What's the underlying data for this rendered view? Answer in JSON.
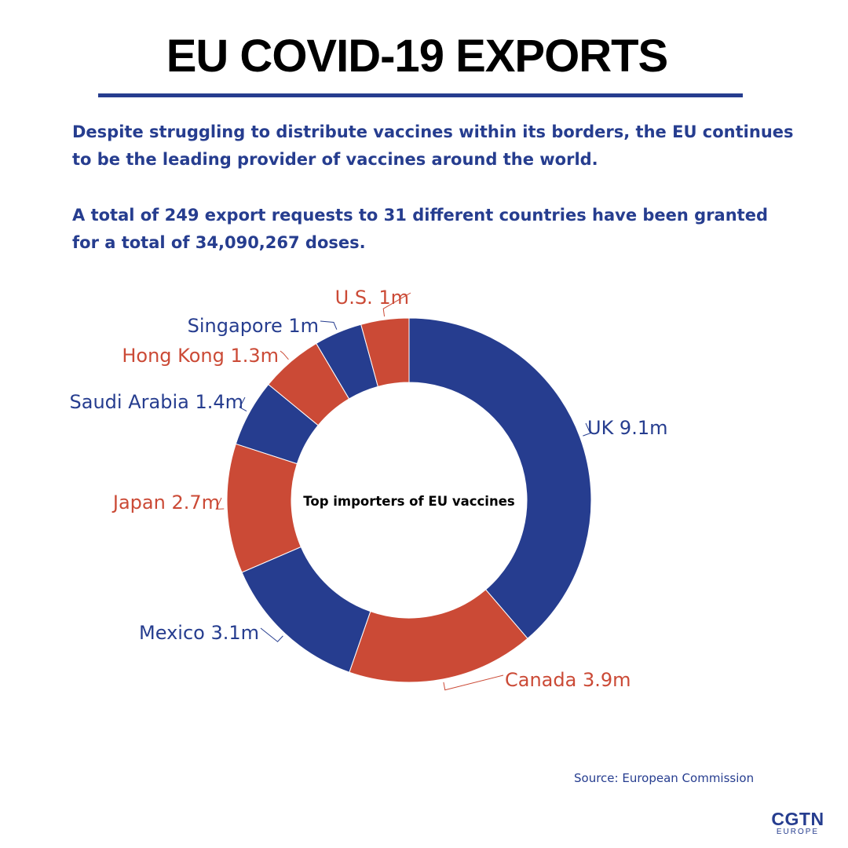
{
  "title": "EU COVID-19 EXPORTS",
  "intro": [
    "Despite struggling to distribute vaccines within its borders, the EU continues to be the leading provider of vaccines around the world.",
    "A total of 249 export requests to 31 different countries have been granted for a total of 34,090,267 doses."
  ],
  "colors": {
    "blue": "#263d8f",
    "red": "#cb4a36",
    "title": "#000000"
  },
  "chart_data": {
    "type": "pie",
    "subtype": "donut",
    "center_label": "Top importers of EU vaccines",
    "unit": "m",
    "slices": [
      {
        "label": "UK",
        "value": 9.1,
        "text": "UK 9.1m",
        "color": "#263d8f"
      },
      {
        "label": "Canada",
        "value": 3.9,
        "text": "Canada 3.9m",
        "color": "#cb4a36"
      },
      {
        "label": "Mexico",
        "value": 3.1,
        "text": "Mexico 3.1m",
        "color": "#263d8f"
      },
      {
        "label": "Japan",
        "value": 2.7,
        "text": "Japan 2.7m",
        "color": "#cb4a36"
      },
      {
        "label": "Saudi Arabia",
        "value": 1.4,
        "text": "Saudi Arabia 1.4m",
        "color": "#263d8f"
      },
      {
        "label": "Hong Kong",
        "value": 1.3,
        "text": "Hong Kong 1.3m",
        "color": "#cb4a36"
      },
      {
        "label": "Singapore",
        "value": 1.0,
        "text": "Singapore 1m",
        "color": "#263d8f"
      },
      {
        "label": "U.S.",
        "value": 1.0,
        "text": "U.S. 1m",
        "color": "#cb4a36"
      }
    ]
  },
  "source": "Source: European Commission",
  "logo": {
    "main": "CGTN",
    "sub": "EUROPE"
  }
}
